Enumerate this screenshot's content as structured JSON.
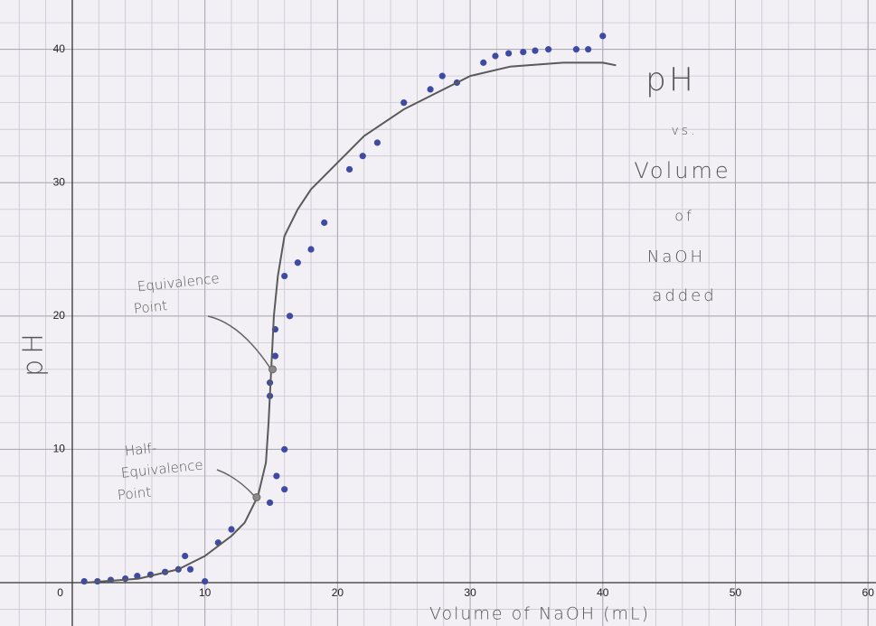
{
  "chart_data": {
    "type": "scatter",
    "title": [
      "pH",
      "vs.",
      "Volume",
      "of",
      "NaOH",
      "added"
    ],
    "x_label": "Volume of NaOH (mL)",
    "y_label": "pH",
    "xlim": [
      -5.45,
      60.6
    ],
    "ylim": [
      -3.25,
      43.7
    ],
    "xticks": [
      0,
      10,
      20,
      30,
      40,
      50,
      60
    ],
    "yticks": [
      10,
      20,
      30,
      40
    ],
    "grid": true,
    "minor_grid_step": 2,
    "series": [
      {
        "type": "scatter",
        "color": "#3f4ba3",
        "x": [
          0.9,
          1.9,
          2.9,
          4,
          4.9,
          5.9,
          7,
          8,
          8.5,
          8.9,
          10,
          11,
          12,
          14.9,
          15.4,
          16,
          16,
          14.9,
          14.9,
          15.3,
          15.3,
          16,
          16.4,
          17,
          18,
          19,
          20.9,
          21.9,
          23,
          25,
          27,
          27.9,
          29,
          31,
          31.9,
          32.9,
          34,
          34.9,
          35.9,
          38,
          38.9,
          40
        ],
        "values": [
          0.1,
          0.1,
          0.2,
          0.3,
          0.5,
          0.6,
          0.8,
          1,
          2,
          1,
          0.1,
          3,
          4,
          6,
          8,
          7,
          10,
          14,
          15,
          17,
          19,
          23,
          20,
          24,
          25,
          27,
          31,
          32,
          33,
          36,
          37,
          38,
          37.5,
          39,
          39.5,
          39.7,
          39.8,
          39.9,
          40,
          40,
          40,
          41
        ]
      },
      {
        "type": "line",
        "color": "#5a5a5a",
        "x": [
          1,
          5,
          8,
          10,
          12,
          13,
          14,
          14.6,
          14.8,
          15,
          15.2,
          15.5,
          16,
          17,
          18,
          20,
          22,
          25,
          28,
          30,
          33,
          37,
          40,
          41
        ],
        "values": [
          0,
          0.3,
          1,
          2,
          3.5,
          4.5,
          6.5,
          9,
          12,
          16,
          20,
          23,
          26,
          28,
          29.5,
          31.5,
          33.5,
          35.5,
          37,
          38,
          38.7,
          39,
          39,
          38.8
        ]
      }
    ],
    "annotations": [
      {
        "text": [
          "Equivalence",
          "Point"
        ],
        "x": 15.1,
        "y": 16,
        "color": "#8a8a8a"
      },
      {
        "text": [
          "Half-",
          "Equivalence",
          "Point"
        ],
        "x": 13.9,
        "y": 6.4,
        "color": "#8a8a8a"
      }
    ],
    "origin_label": "0"
  }
}
